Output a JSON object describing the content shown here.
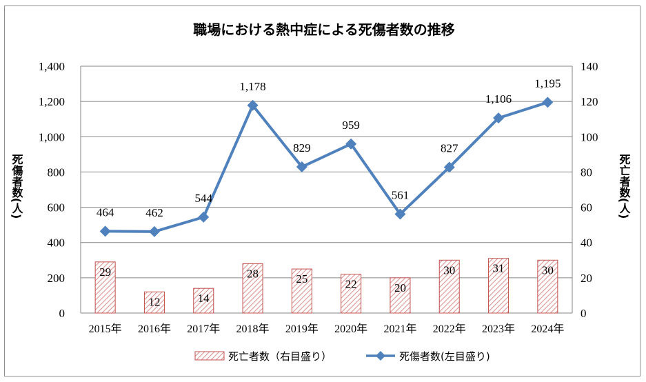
{
  "chart_data": {
    "type": "bar+line",
    "title": "職場における熱中症による死傷者数の推移",
    "categories": [
      "2015年",
      "2016年",
      "2017年",
      "2018年",
      "2019年",
      "2020年",
      "2021年",
      "2022年",
      "2023年",
      "2024年"
    ],
    "left_axis": {
      "label": "死傷者数(人)",
      "ylim": [
        0,
        1400
      ],
      "ticks": [
        "0",
        "200",
        "400",
        "600",
        "800",
        "1,000",
        "1,200",
        "1,400"
      ]
    },
    "right_axis": {
      "label": "死亡者数(人)",
      "ylim": [
        0,
        140
      ],
      "ticks": [
        "0",
        "20",
        "40",
        "60",
        "80",
        "100",
        "120",
        "140"
      ]
    },
    "grid": "horizontal",
    "legend_position": "bottom",
    "series": [
      {
        "name": "死亡者数（右目盛り）",
        "type": "bar",
        "axis": "right",
        "color": "#c0504d",
        "values": [
          29,
          12,
          14,
          28,
          25,
          22,
          20,
          30,
          31,
          30
        ],
        "labels": [
          "29",
          "12",
          "14",
          "28",
          "25",
          "22",
          "20",
          "30",
          "31",
          "30"
        ]
      },
      {
        "name": "死傷者数(左目盛り)",
        "type": "line",
        "axis": "left",
        "color": "#4f81bd",
        "values": [
          464,
          462,
          544,
          1178,
          829,
          959,
          561,
          827,
          1106,
          1195
        ],
        "labels": [
          "464",
          "462",
          "544",
          "1,178",
          "829",
          "959",
          "561",
          "827",
          "1,106",
          "1,195"
        ]
      }
    ]
  }
}
